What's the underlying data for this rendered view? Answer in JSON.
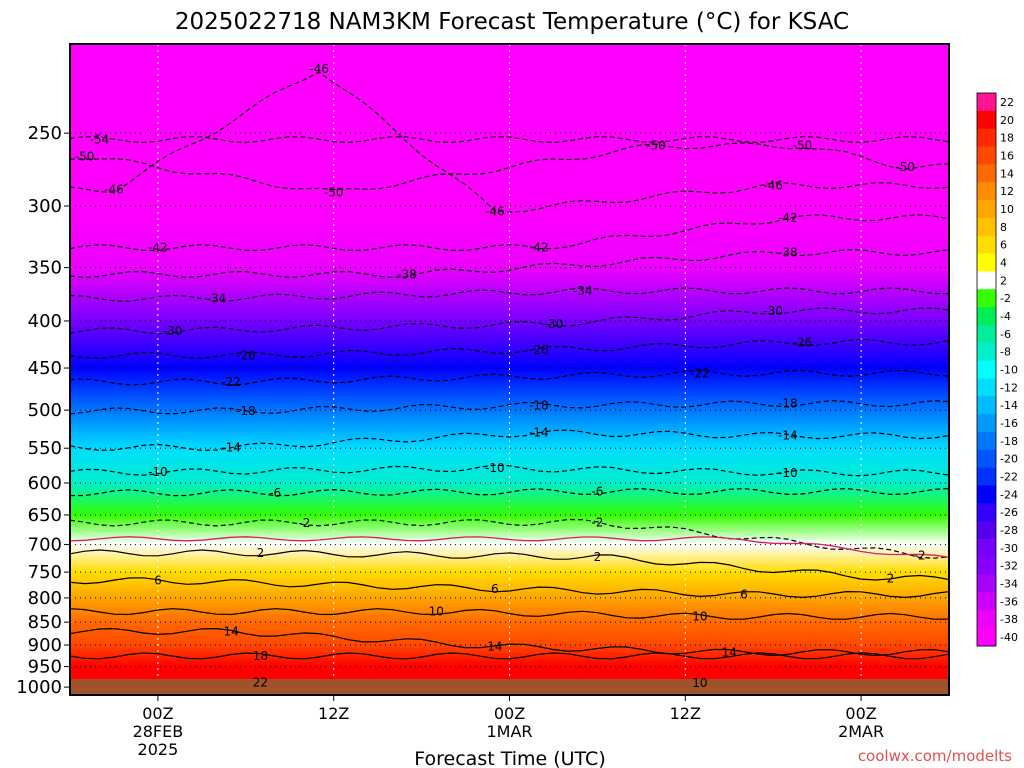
{
  "chart_data": {
    "type": "heatmap",
    "title": "2025022718 NAM3KM Forecast Temperature (°C) for KSAC",
    "xlabel": "Forecast Time (UTC)",
    "ylabel": "",
    "watermark": "coolwx.com/modelts",
    "x_ticks": [
      {
        "label": "00Z",
        "sub": "28FEB",
        "sub2": "2025"
      },
      {
        "label": "12Z",
        "sub": "",
        "sub2": ""
      },
      {
        "label": "00Z",
        "sub": "1MAR",
        "sub2": ""
      },
      {
        "label": "12Z",
        "sub": "",
        "sub2": ""
      },
      {
        "label": "00Z",
        "sub": "2MAR",
        "sub2": ""
      }
    ],
    "x_hours": [
      0,
      12,
      24,
      36,
      48
    ],
    "x_range_hours": [
      -6,
      54
    ],
    "y_ticks": [
      250,
      300,
      350,
      400,
      450,
      500,
      550,
      600,
      650,
      700,
      750,
      800,
      850,
      900,
      950,
      1000
    ],
    "y_range_hpa": [
      200,
      1020
    ],
    "y_scale": "log-pressure",
    "grid": true,
    "colorbar": {
      "labels": [
        "22",
        "20",
        "18",
        "16",
        "14",
        "12",
        "10",
        "8",
        "6",
        "4",
        "2",
        "-2",
        "-4",
        "-6",
        "-8",
        "-10",
        "-12",
        "-14",
        "-16",
        "-18",
        "-20",
        "-22",
        "-24",
        "-26",
        "-28",
        "-30",
        "-32",
        "-34",
        "-36",
        "-38",
        "-40"
      ],
      "colors": [
        "#ff1493",
        "#ff0000",
        "#ff2a00",
        "#ff4800",
        "#ff6a00",
        "#ff8c00",
        "#ffa500",
        "#ffc000",
        "#ffdd00",
        "#ffff00",
        "#ffffff",
        "#33ff00",
        "#00ee55",
        "#00ee99",
        "#00eecc",
        "#00ffff",
        "#00ddff",
        "#00bbff",
        "#0099ff",
        "#0077ff",
        "#0055ff",
        "#0033ff",
        "#0000ff",
        "#3300ff",
        "#5500ee",
        "#7700ff",
        "#8800ff",
        "#aa00ff",
        "#cc00ff",
        "#ee00ff",
        "#ff00ff"
      ]
    },
    "levels_hpa": [
      200,
      250,
      300,
      350,
      400,
      450,
      500,
      550,
      600,
      650,
      700,
      750,
      800,
      850,
      900,
      950,
      1000
    ],
    "temperature_profile_c": [
      -46,
      -50,
      -46,
      -38,
      -30,
      -23,
      -17,
      -12,
      -7,
      -2,
      2,
      6,
      10,
      14,
      17,
      20,
      22
    ],
    "contour_labels": [
      {
        "text": "-46",
        "hour": 11,
        "hpa": 213
      },
      {
        "text": "-54",
        "hour": -4,
        "hpa": 254
      },
      {
        "text": "-50",
        "hour": -5,
        "hpa": 265
      },
      {
        "text": "-50",
        "hour": 12,
        "hpa": 290
      },
      {
        "text": "-50",
        "hour": 34,
        "hpa": 258
      },
      {
        "text": "-50",
        "hour": 44,
        "hpa": 258
      },
      {
        "text": "-50",
        "hour": 51,
        "hpa": 272
      },
      {
        "text": "-46",
        "hour": -3,
        "hpa": 288
      },
      {
        "text": "-46",
        "hour": 23,
        "hpa": 304
      },
      {
        "text": "-46",
        "hour": 42,
        "hpa": 285
      },
      {
        "text": "-42",
        "hour": 0,
        "hpa": 333
      },
      {
        "text": "-42",
        "hour": 26,
        "hpa": 333
      },
      {
        "text": "-42",
        "hour": 43,
        "hpa": 309
      },
      {
        "text": "-38",
        "hour": 17,
        "hpa": 356
      },
      {
        "text": "-38",
        "hour": 43,
        "hpa": 337
      },
      {
        "text": "-34",
        "hour": 4,
        "hpa": 378
      },
      {
        "text": "-34",
        "hour": 29,
        "hpa": 371
      },
      {
        "text": "-30",
        "hour": 1,
        "hpa": 410
      },
      {
        "text": "-30",
        "hour": 27,
        "hpa": 403
      },
      {
        "text": "-30",
        "hour": 42,
        "hpa": 390
      },
      {
        "text": "-26",
        "hour": 6,
        "hpa": 436
      },
      {
        "text": "-26",
        "hour": 26,
        "hpa": 430
      },
      {
        "text": "-26",
        "hour": 44,
        "hpa": 422
      },
      {
        "text": "-22",
        "hour": 5,
        "hpa": 466
      },
      {
        "text": "-22",
        "hour": 37,
        "hpa": 456
      },
      {
        "text": "-18",
        "hour": 6,
        "hpa": 501
      },
      {
        "text": "-18",
        "hour": 26,
        "hpa": 494
      },
      {
        "text": "-18",
        "hour": 43,
        "hpa": 492
      },
      {
        "text": "-14",
        "hour": 5,
        "hpa": 549
      },
      {
        "text": "-14",
        "hour": 26,
        "hpa": 529
      },
      {
        "text": "-14",
        "hour": 43,
        "hpa": 533
      },
      {
        "text": "-10",
        "hour": 0,
        "hpa": 584
      },
      {
        "text": "-10",
        "hour": 23,
        "hpa": 578
      },
      {
        "text": "-10",
        "hour": 43,
        "hpa": 585
      },
      {
        "text": "-6",
        "hour": 8,
        "hpa": 615
      },
      {
        "text": "-6",
        "hour": 30,
        "hpa": 613
      },
      {
        "text": "-2",
        "hour": 10,
        "hpa": 663
      },
      {
        "text": "-2",
        "hour": 30,
        "hpa": 662
      },
      {
        "text": "-2",
        "hour": 52,
        "hpa": 719
      },
      {
        "text": "2",
        "hour": 7,
        "hpa": 715
      },
      {
        "text": "2",
        "hour": 30,
        "hpa": 722
      },
      {
        "text": "2",
        "hour": 50,
        "hpa": 762
      },
      {
        "text": "6",
        "hour": 0,
        "hpa": 766
      },
      {
        "text": "6",
        "hour": 23,
        "hpa": 782
      },
      {
        "text": "6",
        "hour": 40,
        "hpa": 793
      },
      {
        "text": "10",
        "hour": 19,
        "hpa": 828
      },
      {
        "text": "10",
        "hour": 37,
        "hpa": 838
      },
      {
        "text": "10",
        "hour": 37,
        "hpa": 990
      },
      {
        "text": "14",
        "hour": 5,
        "hpa": 870
      },
      {
        "text": "14",
        "hour": 23,
        "hpa": 903
      },
      {
        "text": "14",
        "hour": 39,
        "hpa": 917
      },
      {
        "text": "18",
        "hour": 7,
        "hpa": 925
      },
      {
        "text": "22",
        "hour": 7,
        "hpa": 989
      }
    ]
  }
}
